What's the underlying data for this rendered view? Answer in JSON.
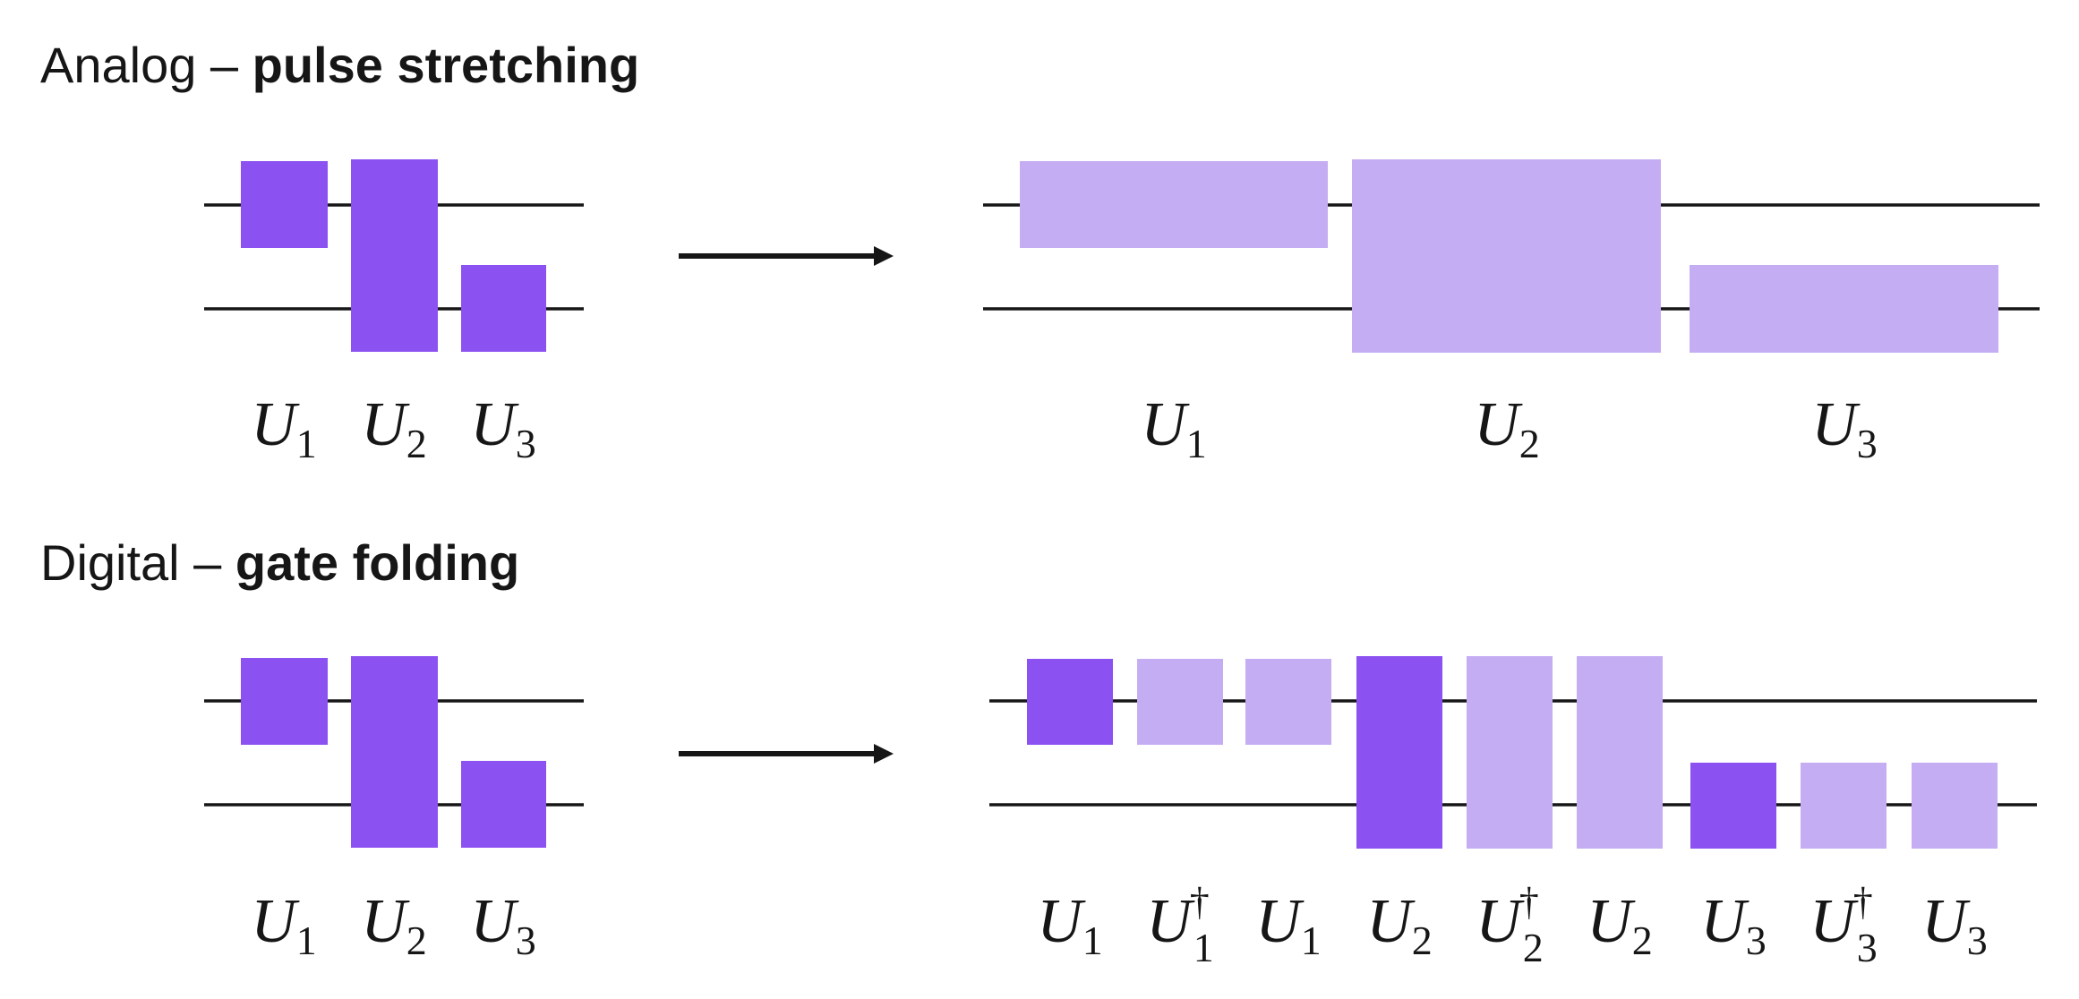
{
  "colors": {
    "dark_gate": "#8b51f1",
    "light_gate": "#c5adf3",
    "line": "#161616"
  },
  "sections": [
    {
      "title_prefix": "Analog – ",
      "title_bold": "pulse stretching",
      "input_labels": [
        {
          "base": "U",
          "sub": "1",
          "sup": ""
        },
        {
          "base": "U",
          "sub": "2",
          "sup": ""
        },
        {
          "base": "U",
          "sub": "3",
          "sup": ""
        }
      ],
      "output_labels": [
        {
          "base": "U",
          "sub": "1",
          "sup": ""
        },
        {
          "base": "U",
          "sub": "2",
          "sup": ""
        },
        {
          "base": "U",
          "sub": "3",
          "sup": ""
        }
      ]
    },
    {
      "title_prefix": "Digital – ",
      "title_bold": "gate folding",
      "input_labels": [
        {
          "base": "U",
          "sub": "1",
          "sup": ""
        },
        {
          "base": "U",
          "sub": "2",
          "sup": ""
        },
        {
          "base": "U",
          "sub": "3",
          "sup": ""
        }
      ],
      "output_labels": [
        {
          "base": "U",
          "sub": "1",
          "sup": ""
        },
        {
          "base": "U",
          "sub": "1",
          "sup": "†"
        },
        {
          "base": "U",
          "sub": "1",
          "sup": ""
        },
        {
          "base": "U",
          "sub": "2",
          "sup": ""
        },
        {
          "base": "U",
          "sub": "2",
          "sup": "†"
        },
        {
          "base": "U",
          "sub": "2",
          "sup": ""
        },
        {
          "base": "U",
          "sub": "3",
          "sup": ""
        },
        {
          "base": "U",
          "sub": "3",
          "sup": "†"
        },
        {
          "base": "U",
          "sub": "3",
          "sup": ""
        }
      ]
    }
  ]
}
